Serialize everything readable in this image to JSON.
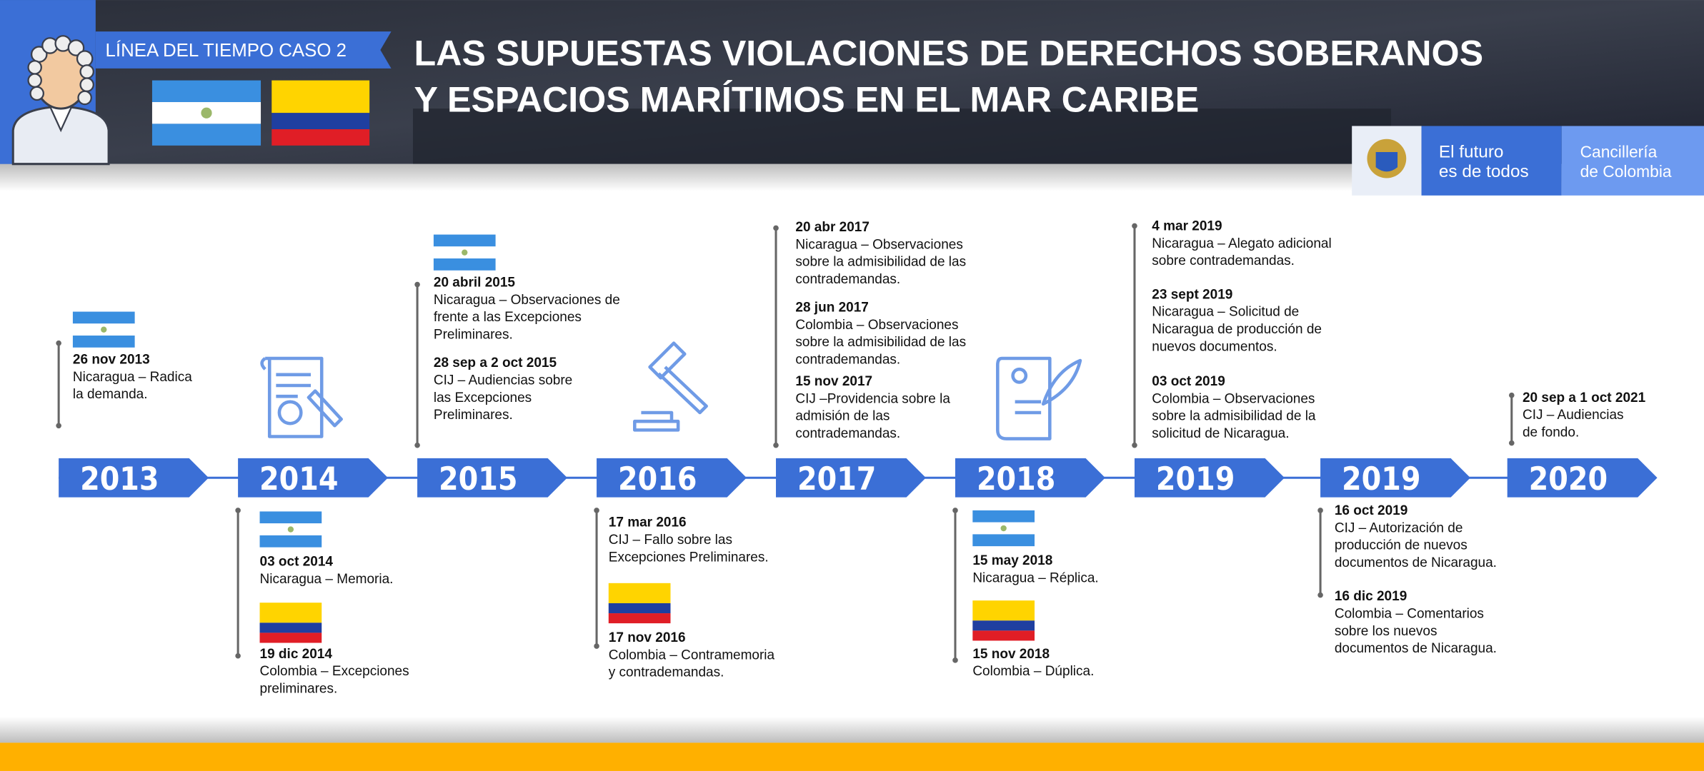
{
  "header": {
    "badge": "LÍNEA DEL TIEMPO CASO 2",
    "title": [
      "LAS SUPUESTAS VIOLACIONES DE DERECHOS SOBERANOS",
      "Y ESPACIOS MARÍTIMOS EN EL MAR CARIBE"
    ]
  },
  "logo": {
    "slogan": [
      "El futuro",
      "es de todos"
    ],
    "ministry": [
      "Cancillería",
      "de Colombia"
    ]
  },
  "years": [
    "2013",
    "2014",
    "2015",
    "2016",
    "2017",
    "2018",
    "2019",
    "2019",
    "2020"
  ],
  "events": [
    {
      "date": "26 nov 2013",
      "text": [
        "Nicaragua – Radica",
        "la demanda."
      ]
    },
    {
      "date": "20 abril 2015",
      "text": [
        "Nicaragua – Observaciones de",
        "frente a las Excepciones",
        "Preliminares."
      ]
    },
    {
      "date": "28 sep a 2 oct 2015",
      "text": [
        "CIJ – Audiencias sobre",
        "las Excepciones",
        "Preliminares."
      ]
    },
    {
      "date": "20 abr 2017",
      "text": [
        "Nicaragua – Observaciones",
        "sobre la admisibilidad de las",
        "contrademandas."
      ]
    },
    {
      "date": "28 jun 2017",
      "text": [
        "Colombia – Observaciones",
        "sobre la admisibilidad de las",
        "contrademandas."
      ]
    },
    {
      "date": "15 nov 2017",
      "text": [
        "CIJ –Providencia sobre la",
        "admisión de las",
        "contrademandas."
      ]
    },
    {
      "date": "4 mar 2019",
      "text": [
        "Nicaragua – Alegato adicional",
        "sobre contrademandas."
      ]
    },
    {
      "date": "23 sept 2019",
      "text": [
        "Nicaragua – Solicitud de",
        "Nicaragua de producción de",
        "nuevos documentos."
      ]
    },
    {
      "date": "03 oct 2019",
      "text": [
        "Colombia – Observaciones",
        "sobre la admisibilidad de la",
        "solicitud de Nicaragua."
      ]
    },
    {
      "date": "20 sep a 1 oct 2021",
      "text": [
        "CIJ – Audiencias",
        "de fondo."
      ]
    },
    {
      "date": "03 oct 2014",
      "text": [
        "Nicaragua – Memoria."
      ]
    },
    {
      "date": "19 dic 2014",
      "text": [
        "Colombia – Excepciones",
        "preliminares."
      ]
    },
    {
      "date": "17 mar 2016",
      "text": [
        "CIJ – Fallo sobre las",
        "Excepciones Preliminares."
      ]
    },
    {
      "date": "17 nov 2016",
      "text": [
        "Colombia – Contramemoria",
        "y contrademandas."
      ]
    },
    {
      "date": "15 may 2018",
      "text": [
        "Nicaragua – Réplica."
      ]
    },
    {
      "date": "15 nov 2018",
      "text": [
        "Colombia – Dúplica."
      ]
    },
    {
      "date": "16 oct 2019",
      "text": [
        "CIJ – Autorización de",
        "producción de nuevos",
        "documentos de Nicaragua."
      ]
    },
    {
      "date": "16 dic 2019",
      "text": [
        "Colombia – Comentarios",
        "sobre los nuevos",
        "documentos de Nicaragua."
      ]
    }
  ]
}
